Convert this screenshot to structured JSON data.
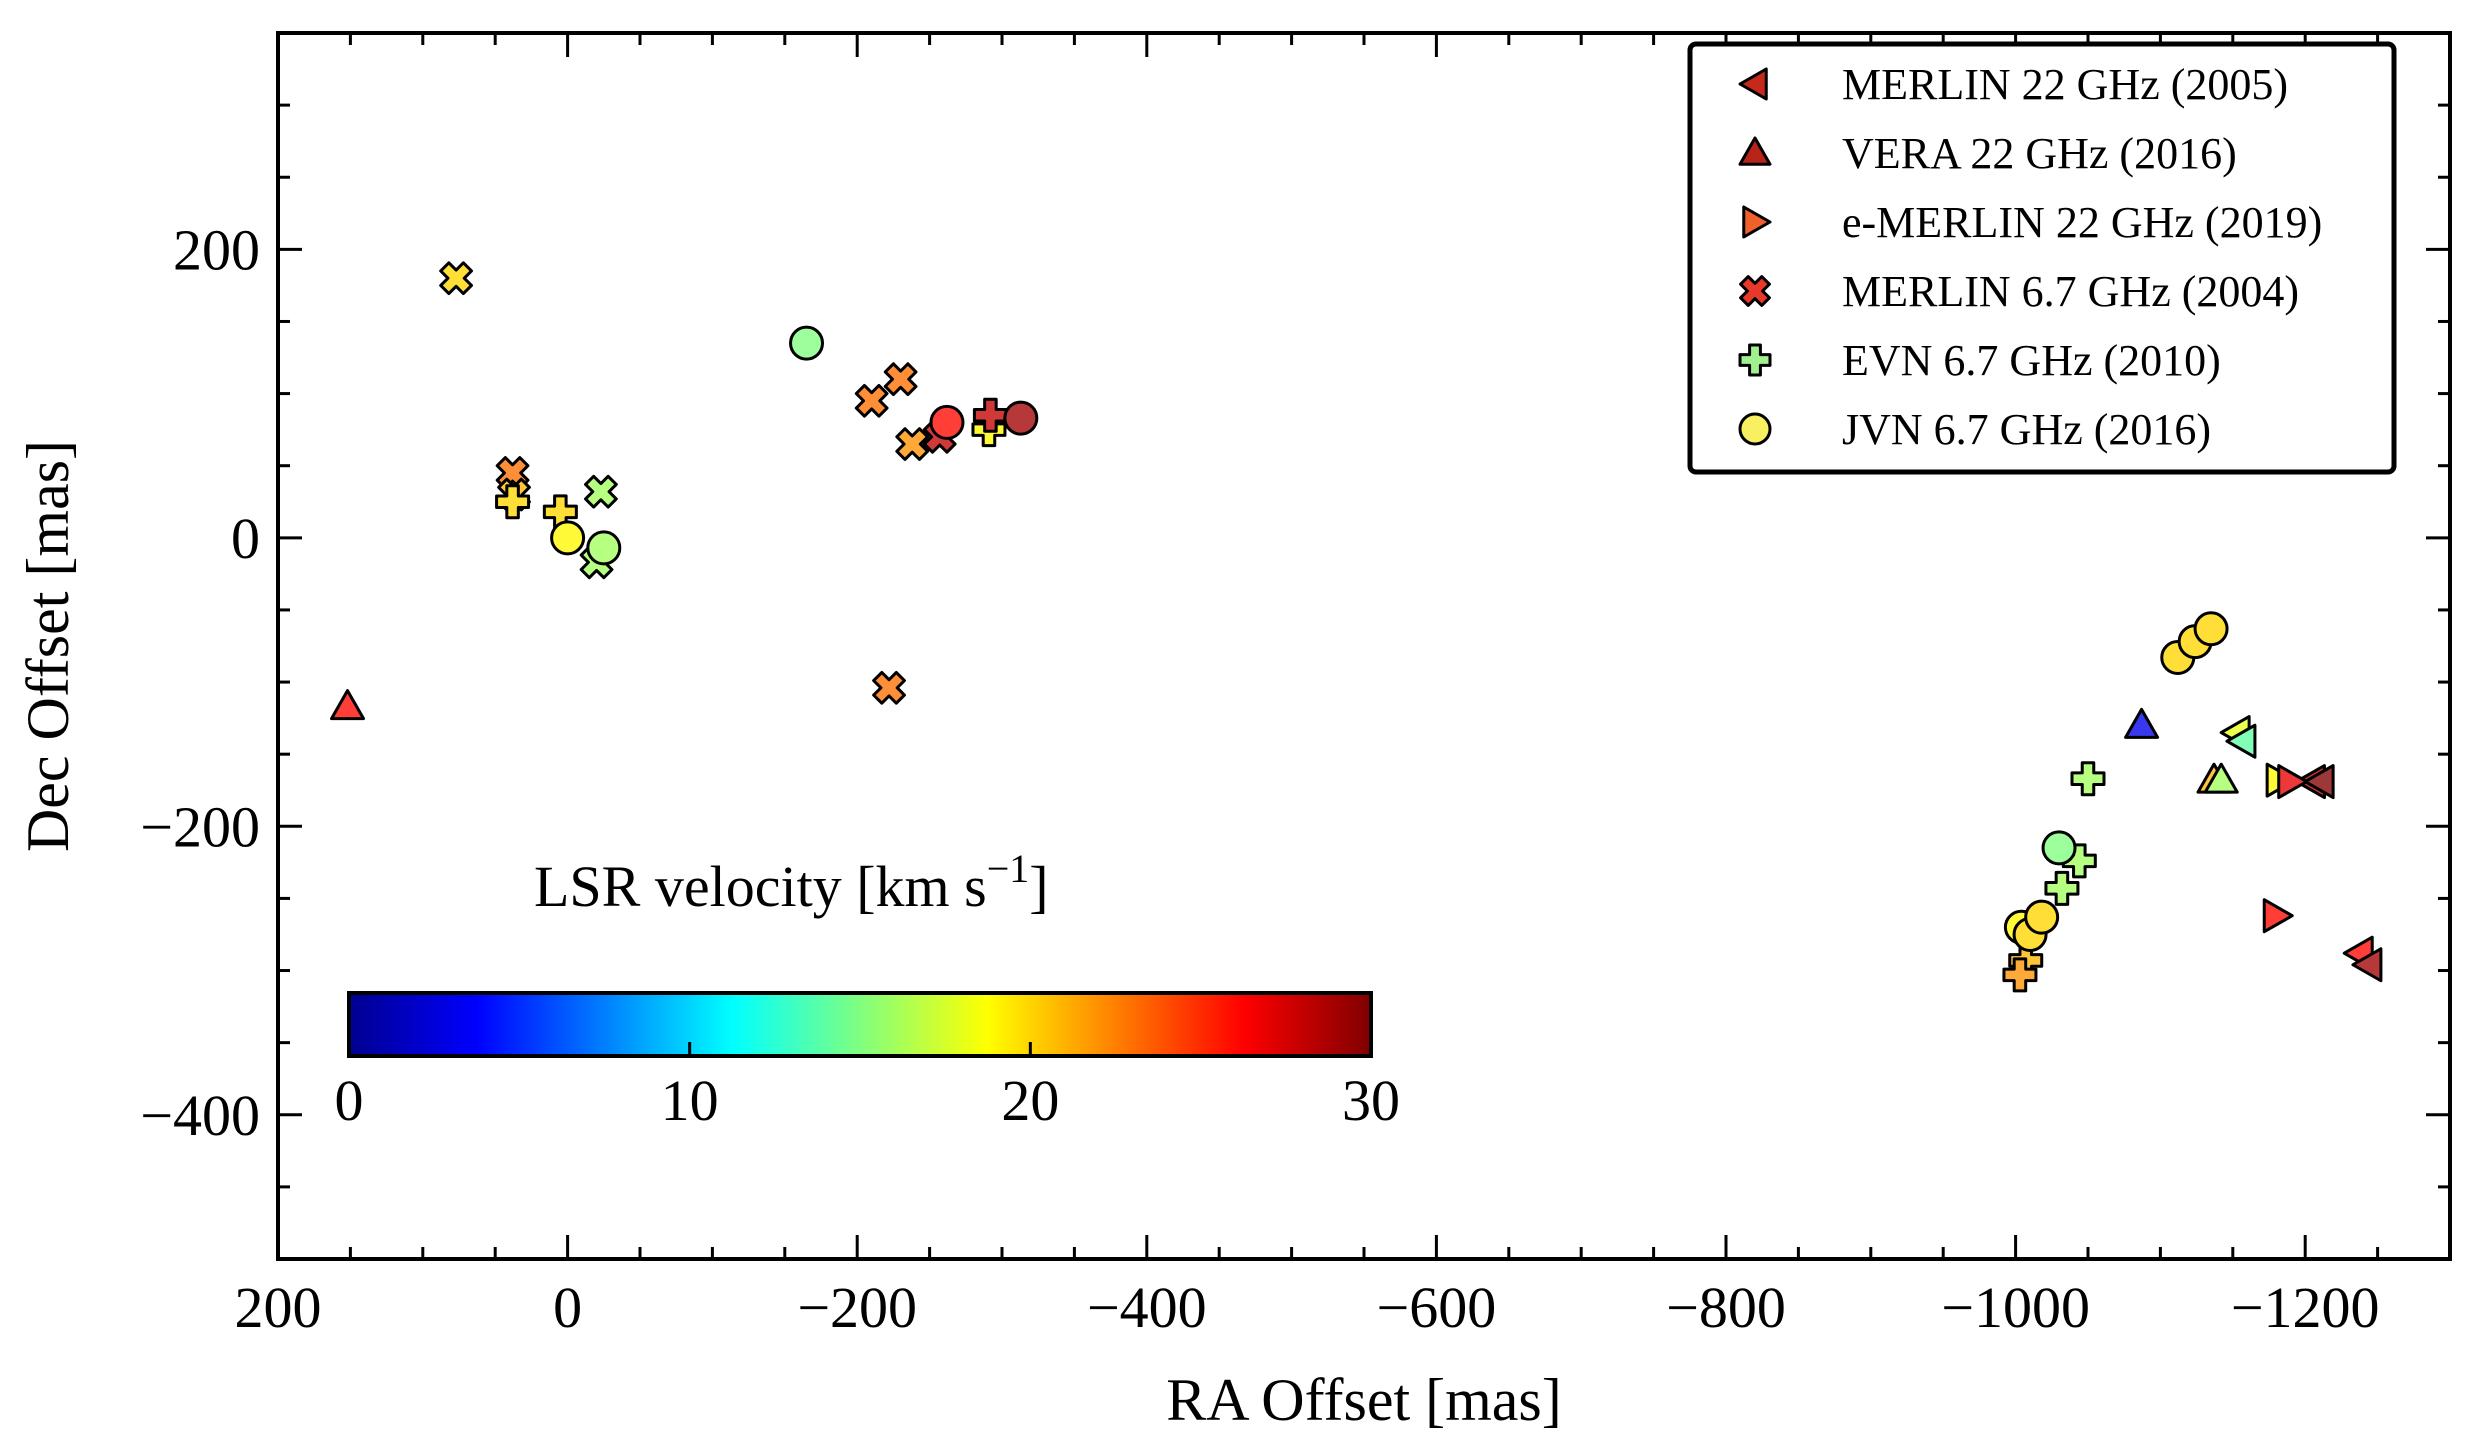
{
  "chart_data": {
    "type": "scatter",
    "xlabel": "RA Offset [mas]",
    "ylabel": "Dec Offset [mas]",
    "xlim": [
      200,
      -1300
    ],
    "ylim": [
      -500,
      350
    ],
    "xticks": [
      200,
      0,
      -200,
      -400,
      -600,
      -800,
      -1000,
      -1200
    ],
    "xtick_labels": [
      "200",
      "0",
      "−200",
      "−400",
      "−600",
      "−800",
      "−1000",
      "−1200"
    ],
    "yticks": [
      200,
      0,
      -200,
      -400
    ],
    "ytick_labels": [
      "200",
      "0",
      "−200",
      "−400"
    ],
    "colorbar": {
      "label": "LSR velocity [km s",
      "label_exponent": "−1",
      "label_close": "]",
      "range": [
        0,
        30
      ],
      "ticks": [
        0,
        10,
        20,
        30
      ],
      "tick_labels": [
        "0",
        "10",
        "20",
        "30"
      ],
      "colormap": "jet"
    },
    "legend_position": "top-right",
    "series": [
      {
        "name": "MERLIN 22 GHz (2005)",
        "marker": "triangle-left",
        "legend_color": "#c8281c",
        "points": [
          {
            "x": -1153,
            "y": -135,
            "v": 18
          },
          {
            "x": -1157,
            "y": -141,
            "v": 14
          },
          {
            "x": -1205,
            "y": -169,
            "v": 28
          },
          {
            "x": -1211,
            "y": -169,
            "v": 30
          },
          {
            "x": -1238,
            "y": -288,
            "v": 26
          },
          {
            "x": -1244,
            "y": -296,
            "v": 29
          }
        ]
      },
      {
        "name": "VERA 22 GHz (2016)",
        "marker": "triangle-up",
        "legend_color": "#b8241a",
        "points": [
          {
            "x": 152,
            "y": -117,
            "v": 26
          },
          {
            "x": -1087,
            "y": -130,
            "v": 3
          },
          {
            "x": -1137,
            "y": -168,
            "v": 21
          },
          {
            "x": -1142,
            "y": -168,
            "v": 16
          }
        ]
      },
      {
        "name": "e-MERLIN 22 GHz (2019)",
        "marker": "triangle-right",
        "legend_color": "#f0602a",
        "points": [
          {
            "x": -1182,
            "y": -168,
            "v": 19
          },
          {
            "x": -1190,
            "y": -169,
            "v": 27
          },
          {
            "x": -1180,
            "y": -262,
            "v": 26
          }
        ]
      },
      {
        "name": "MERLIN 6.7 GHz (2004)",
        "marker": "x",
        "legend_color": "#e8382a",
        "points": [
          {
            "x": 77,
            "y": 180,
            "v": 20
          },
          {
            "x": 38,
            "y": 45,
            "v": 23
          },
          {
            "x": 37,
            "y": 30,
            "v": 21
          },
          {
            "x": -23,
            "y": 32,
            "v": 16
          },
          {
            "x": -20,
            "y": -17,
            "v": 16
          },
          {
            "x": -210,
            "y": 95,
            "v": 23
          },
          {
            "x": -230,
            "y": 110,
            "v": 23
          },
          {
            "x": -238,
            "y": 65,
            "v": 22
          },
          {
            "x": -257,
            "y": 70,
            "v": 28
          },
          {
            "x": -222,
            "y": -104,
            "v": 23
          }
        ]
      },
      {
        "name": "EVN 6.7 GHz (2010)",
        "marker": "plus",
        "legend_color": "#a0f090",
        "points": [
          {
            "x": 38,
            "y": 25,
            "v": 20
          },
          {
            "x": 5,
            "y": 18,
            "v": 20
          },
          {
            "x": -291,
            "y": 75,
            "v": 19
          },
          {
            "x": -292,
            "y": 85,
            "v": 28
          },
          {
            "x": -1050,
            "y": -167,
            "v": 16
          },
          {
            "x": -1044,
            "y": -224,
            "v": 16
          },
          {
            "x": -1032,
            "y": -243,
            "v": 16
          },
          {
            "x": -1007,
            "y": -293,
            "v": 21
          },
          {
            "x": -1003,
            "y": -303,
            "v": 22
          }
        ]
      },
      {
        "name": "JVN 6.7 GHz (2016)",
        "marker": "circle",
        "legend_color": "#f8f060",
        "points": [
          {
            "x": 0,
            "y": 0,
            "v": 19
          },
          {
            "x": -25,
            "y": -7,
            "v": 16
          },
          {
            "x": -165,
            "y": 135,
            "v": 15
          },
          {
            "x": -262,
            "y": 80,
            "v": 26
          },
          {
            "x": -313,
            "y": 83,
            "v": 29
          },
          {
            "x": -1112,
            "y": -83,
            "v": 20
          },
          {
            "x": -1124,
            "y": -72,
            "v": 20
          },
          {
            "x": -1135,
            "y": -63,
            "v": 20
          },
          {
            "x": -1030,
            "y": -215,
            "v": 15
          },
          {
            "x": -1004,
            "y": -270,
            "v": 19
          },
          {
            "x": -1010,
            "y": -275,
            "v": 20
          },
          {
            "x": -1018,
            "y": -263,
            "v": 20
          }
        ]
      }
    ]
  }
}
